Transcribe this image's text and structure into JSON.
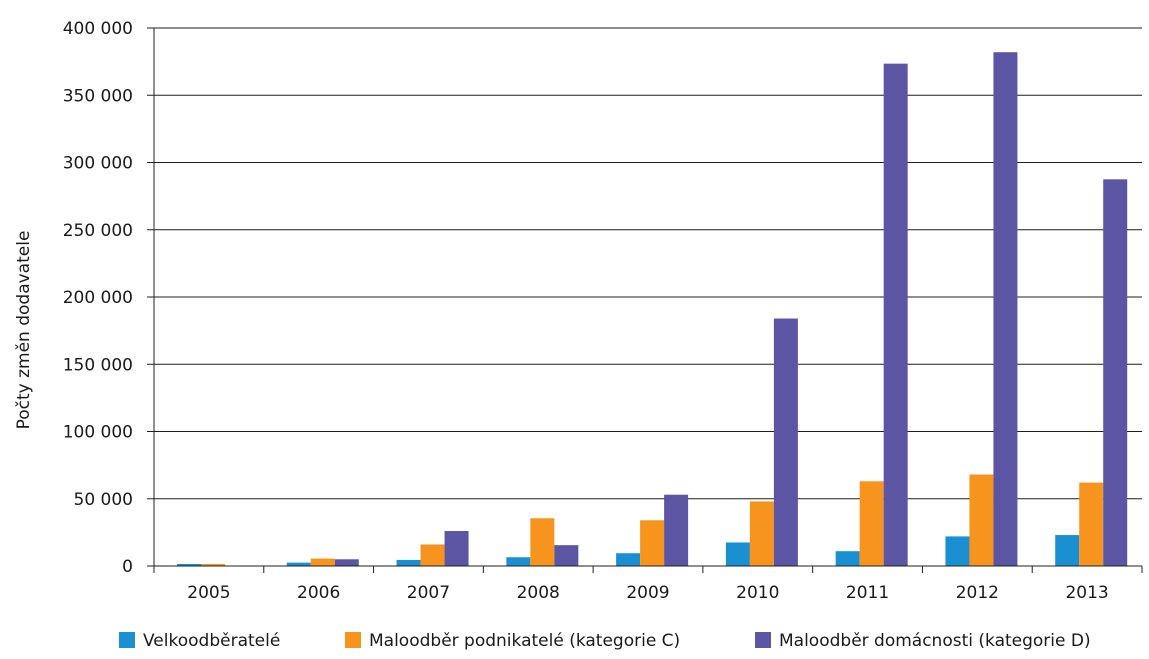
{
  "chart_data": {
    "type": "bar",
    "title": "",
    "xlabel": "",
    "ylabel": "Počty změn dodavatele",
    "ylim": [
      0,
      400000
    ],
    "yticks": [
      0,
      50000,
      100000,
      150000,
      200000,
      250000,
      300000,
      350000,
      400000
    ],
    "ytick_labels": [
      "0",
      "50 000",
      "100 000",
      "150 000",
      "200 000",
      "250 000",
      "300 000",
      "350 000",
      "400 000"
    ],
    "categories": [
      "2005",
      "2006",
      "2007",
      "2008",
      "2009",
      "2010",
      "2011",
      "2012",
      "2013"
    ],
    "grid": true,
    "legend_position": "bottom",
    "series": [
      {
        "name": "Velkoodběratelé",
        "color": "#1a8fd1",
        "values": [
          1500,
          2500,
          4500,
          6500,
          9500,
          17500,
          11000,
          22000,
          23000
        ]
      },
      {
        "name": "Maloodběr podnikatelé (kategorie C)",
        "color": "#f7941d",
        "values": [
          1500,
          5500,
          16000,
          35500,
          34000,
          48000,
          63000,
          68000,
          62000
        ]
      },
      {
        "name": "Maloodběr domácnosti (kategorie D)",
        "color": "#5b55a4",
        "values": [
          0,
          5000,
          26000,
          15500,
          53000,
          184000,
          373500,
          382000,
          287500
        ]
      }
    ]
  }
}
